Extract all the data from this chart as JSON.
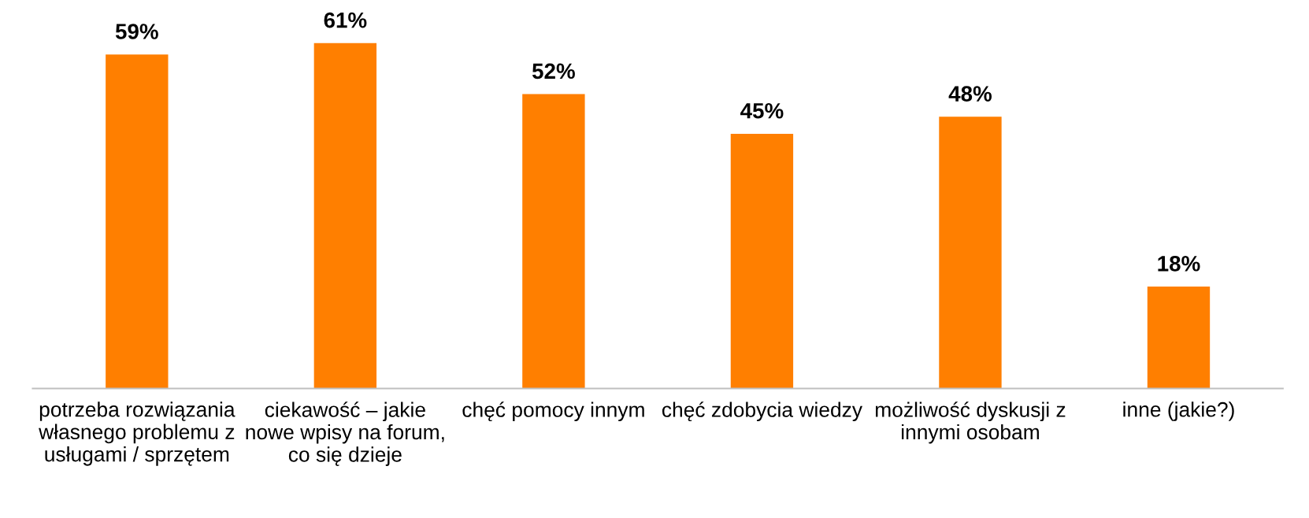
{
  "chart_data": {
    "type": "bar",
    "categories": [
      "potrzeba rozwiązania\nwłasnego problemu z\nusługami / sprzętem",
      "ciekawość – jakie\nnowe wpisy na forum,\nco się dzieje",
      "chęć pomocy innym",
      "chęć zdobycia wiedzy",
      "możliwość dyskusji z\ninnymi osobam",
      "inne (jakie?)"
    ],
    "values": [
      59,
      61,
      52,
      45,
      48,
      18
    ],
    "value_labels": [
      "59%",
      "61%",
      "52%",
      "45%",
      "48%",
      "18%"
    ],
    "color": "#ff7f00",
    "grid": false,
    "legend": false
  }
}
